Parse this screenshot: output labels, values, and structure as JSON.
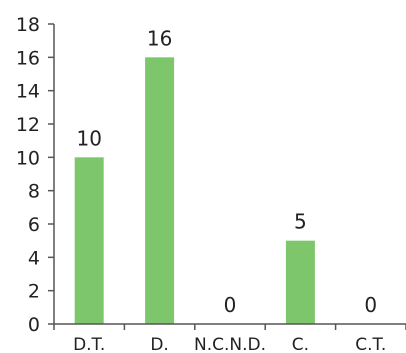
{
  "chart_data": {
    "type": "bar",
    "categories": [
      "D.T.",
      "D.",
      "N.C.N.D.",
      "C.",
      "C.T."
    ],
    "values": [
      10,
      16,
      0,
      5,
      0
    ],
    "data_labels": [
      "10",
      "16",
      "0",
      "5",
      "0"
    ],
    "yticks": [
      "0",
      "2",
      "4",
      "6",
      "8",
      "10",
      "12",
      "14",
      "16",
      "18"
    ],
    "ylim": [
      0,
      18
    ],
    "title": "",
    "xlabel": "",
    "ylabel": "",
    "grid": false,
    "legend": "none",
    "bar_color": "#7dc66b"
  }
}
